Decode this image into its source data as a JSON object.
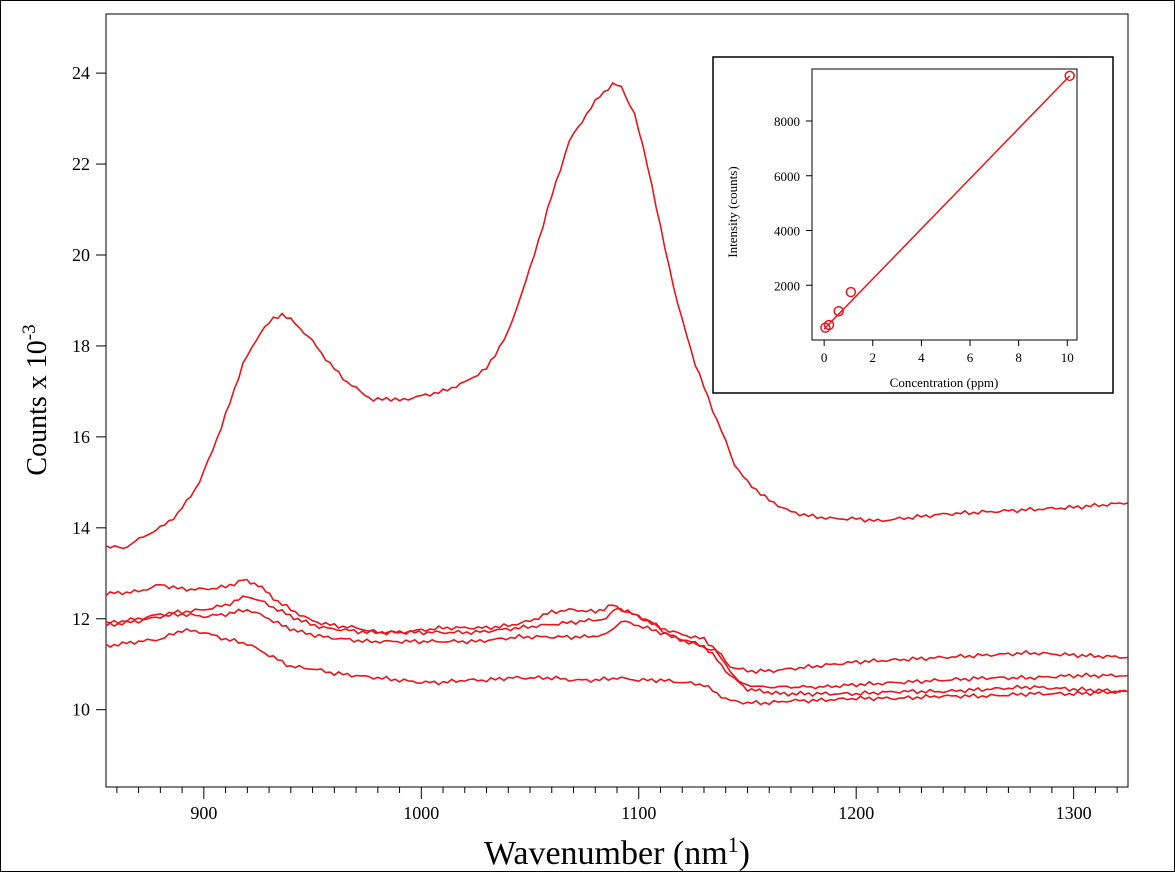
{
  "chart_data": [
    {
      "type": "line",
      "xlabel_main": "Wavenumber (nm",
      "xlabel_sup": "1",
      "xlabel_end": ")",
      "ylabel_main": "Counts x 10",
      "ylabel_sup": "-3",
      "xlim": [
        855,
        1325
      ],
      "ylim": [
        8.3,
        25.3
      ],
      "xticks": [
        900,
        1000,
        1100,
        1200,
        1300
      ],
      "xtick_labels": [
        "900",
        "1000",
        "1100",
        "1200",
        "1300"
      ],
      "x_minor_step": 10,
      "yticks": [
        10,
        12,
        14,
        16,
        18,
        20,
        22,
        24
      ],
      "ytick_labels": [
        "10",
        "12",
        "14",
        "16",
        "18",
        "20",
        "22",
        "24"
      ],
      "grid": false,
      "line_color": "#e8161b",
      "series": [
        {
          "x": [
            855,
            863,
            872,
            880,
            888,
            898,
            908,
            918,
            926,
            932,
            936,
            942,
            950,
            958,
            966,
            972,
            978,
            984,
            990,
            1000,
            1010,
            1020,
            1030,
            1040,
            1050,
            1060,
            1068,
            1076,
            1082,
            1088,
            1092,
            1098,
            1104,
            1110,
            1118,
            1126,
            1134,
            1140,
            1144,
            1150,
            1160,
            1170,
            1180,
            1190,
            1200,
            1210,
            1220,
            1240,
            1260,
            1280,
            1300,
            1325
          ],
          "y": [
            13.6,
            13.55,
            13.8,
            14.0,
            14.3,
            15.0,
            16.2,
            17.6,
            18.3,
            18.6,
            18.7,
            18.5,
            18.1,
            17.6,
            17.2,
            17.0,
            16.8,
            16.85,
            16.8,
            16.9,
            17.0,
            17.2,
            17.5,
            18.3,
            19.7,
            21.3,
            22.5,
            23.1,
            23.5,
            23.75,
            23.7,
            23.1,
            22.0,
            20.6,
            18.9,
            17.6,
            16.6,
            15.9,
            15.4,
            15.0,
            14.6,
            14.35,
            14.25,
            14.2,
            14.2,
            14.15,
            14.2,
            14.3,
            14.35,
            14.4,
            14.45,
            14.55
          ]
        },
        {
          "x": [
            855,
            870,
            880,
            890,
            900,
            910,
            918,
            925,
            932,
            940,
            950,
            960,
            970,
            980,
            990,
            1000,
            1010,
            1020,
            1030,
            1040,
            1050,
            1060,
            1070,
            1080,
            1088,
            1092,
            1100,
            1110,
            1120,
            1130,
            1136,
            1142,
            1150,
            1160,
            1170,
            1180,
            1190,
            1200,
            1220,
            1240,
            1260,
            1280,
            1300,
            1325
          ],
          "y": [
            12.55,
            12.6,
            12.75,
            12.65,
            12.65,
            12.7,
            12.85,
            12.75,
            12.45,
            12.2,
            11.95,
            11.85,
            11.8,
            11.7,
            11.7,
            11.75,
            11.8,
            11.8,
            11.8,
            11.85,
            11.95,
            12.15,
            12.2,
            12.15,
            12.3,
            12.2,
            12.05,
            11.8,
            11.65,
            11.55,
            11.3,
            10.95,
            10.85,
            10.85,
            10.9,
            10.95,
            11.0,
            11.05,
            11.1,
            11.15,
            11.2,
            11.25,
            11.2,
            11.15
          ]
        },
        {
          "x": [
            855,
            870,
            880,
            890,
            900,
            910,
            920,
            928,
            936,
            945,
            955,
            965,
            975,
            985,
            995,
            1005,
            1015,
            1025,
            1035,
            1045,
            1055,
            1065,
            1075,
            1085,
            1090,
            1095,
            1105,
            1115,
            1125,
            1135,
            1140,
            1146,
            1155,
            1170,
            1185,
            1200,
            1220,
            1240,
            1260,
            1280,
            1300,
            1325
          ],
          "y": [
            11.9,
            12.0,
            12.1,
            12.15,
            12.2,
            12.3,
            12.5,
            12.35,
            12.15,
            11.95,
            11.8,
            11.75,
            11.7,
            11.7,
            11.7,
            11.7,
            11.7,
            11.7,
            11.75,
            11.8,
            11.85,
            11.9,
            11.95,
            12.0,
            12.25,
            12.15,
            11.95,
            11.6,
            11.45,
            11.3,
            11.0,
            10.6,
            10.5,
            10.5,
            10.5,
            10.55,
            10.6,
            10.65,
            10.7,
            10.7,
            10.75,
            10.75
          ]
        },
        {
          "x": [
            855,
            870,
            880,
            890,
            900,
            910,
            920,
            928,
            936,
            945,
            955,
            965,
            975,
            985,
            995,
            1005,
            1015,
            1025,
            1035,
            1045,
            1055,
            1065,
            1075,
            1085,
            1092,
            1100,
            1110,
            1120,
            1130,
            1136,
            1142,
            1150,
            1165,
            1180,
            1200,
            1220,
            1240,
            1260,
            1280,
            1300,
            1325
          ],
          "y": [
            11.85,
            11.95,
            12.05,
            12.1,
            12.05,
            12.1,
            12.2,
            12.05,
            11.85,
            11.7,
            11.6,
            11.55,
            11.5,
            11.5,
            11.5,
            11.5,
            11.5,
            11.5,
            11.55,
            11.6,
            11.6,
            11.6,
            11.6,
            11.65,
            11.95,
            11.85,
            11.7,
            11.55,
            11.4,
            11.1,
            10.75,
            10.45,
            10.35,
            10.35,
            10.35,
            10.4,
            10.4,
            10.45,
            10.5,
            10.45,
            10.4
          ]
        },
        {
          "x": [
            855,
            870,
            880,
            890,
            900,
            910,
            920,
            930,
            940,
            950,
            960,
            970,
            980,
            990,
            1000,
            1010,
            1020,
            1030,
            1040,
            1050,
            1060,
            1070,
            1080,
            1090,
            1100,
            1110,
            1120,
            1130,
            1136,
            1142,
            1150,
            1160,
            1170,
            1180,
            1200,
            1220,
            1240,
            1260,
            1280,
            1300,
            1325
          ],
          "y": [
            11.4,
            11.5,
            11.55,
            11.75,
            11.7,
            11.55,
            11.45,
            11.2,
            10.95,
            10.9,
            10.8,
            10.75,
            10.7,
            10.65,
            10.6,
            10.6,
            10.65,
            10.65,
            10.7,
            10.7,
            10.7,
            10.65,
            10.65,
            10.7,
            10.65,
            10.65,
            10.6,
            10.55,
            10.35,
            10.2,
            10.15,
            10.15,
            10.2,
            10.2,
            10.25,
            10.25,
            10.3,
            10.3,
            10.35,
            10.35,
            10.4
          ]
        }
      ]
    },
    {
      "type": "scatter",
      "xlabel": "Concentration (ppm)",
      "ylabel": "Intensity (counts)",
      "xlim": [
        -0.5,
        10.4
      ],
      "ylim": [
        0,
        9900
      ],
      "xticks": [
        0,
        2,
        4,
        6,
        8,
        10
      ],
      "xtick_labels": [
        "0",
        "2",
        "4",
        "6",
        "8",
        "10"
      ],
      "yticks": [
        2000,
        4000,
        6000,
        8000
      ],
      "ytick_labels": [
        "2000",
        "4000",
        "6000",
        "8000"
      ],
      "grid": false,
      "legend": "none",
      "placement": "top-right",
      "points": {
        "x": [
          0.05,
          0.2,
          0.6,
          1.1,
          10.1
        ],
        "y": [
          450,
          550,
          1050,
          1750,
          9650
        ]
      },
      "fit_line": {
        "x": [
          0,
          10.1
        ],
        "y": [
          400,
          9650
        ]
      },
      "color": "#e8161b"
    }
  ]
}
